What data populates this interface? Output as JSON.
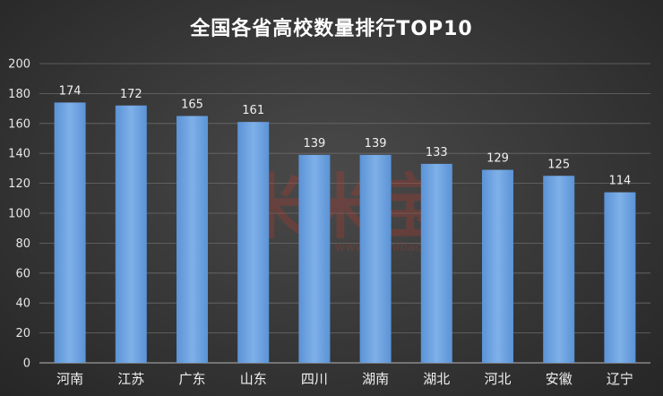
{
  "chart_data": {
    "type": "bar",
    "title": "全国各省高校数量排行TOP10",
    "categories": [
      "河南",
      "江苏",
      "广东",
      "山东",
      "四川",
      "湖南",
      "湖北",
      "河北",
      "安徽",
      "辽宁"
    ],
    "values": [
      174,
      172,
      165,
      161,
      139,
      139,
      133,
      129,
      125,
      114
    ],
    "ylim": [
      0,
      200
    ],
    "yticks": [
      0,
      20,
      40,
      60,
      80,
      100,
      120,
      140,
      160,
      180,
      200
    ],
    "grid": true,
    "legend": "none",
    "bar_color": "#6a9fdc",
    "bar_color_light": "#8ab8ec"
  },
  "watermark": {
    "text": "米米宝",
    "sub": "www.mimibao.com"
  }
}
